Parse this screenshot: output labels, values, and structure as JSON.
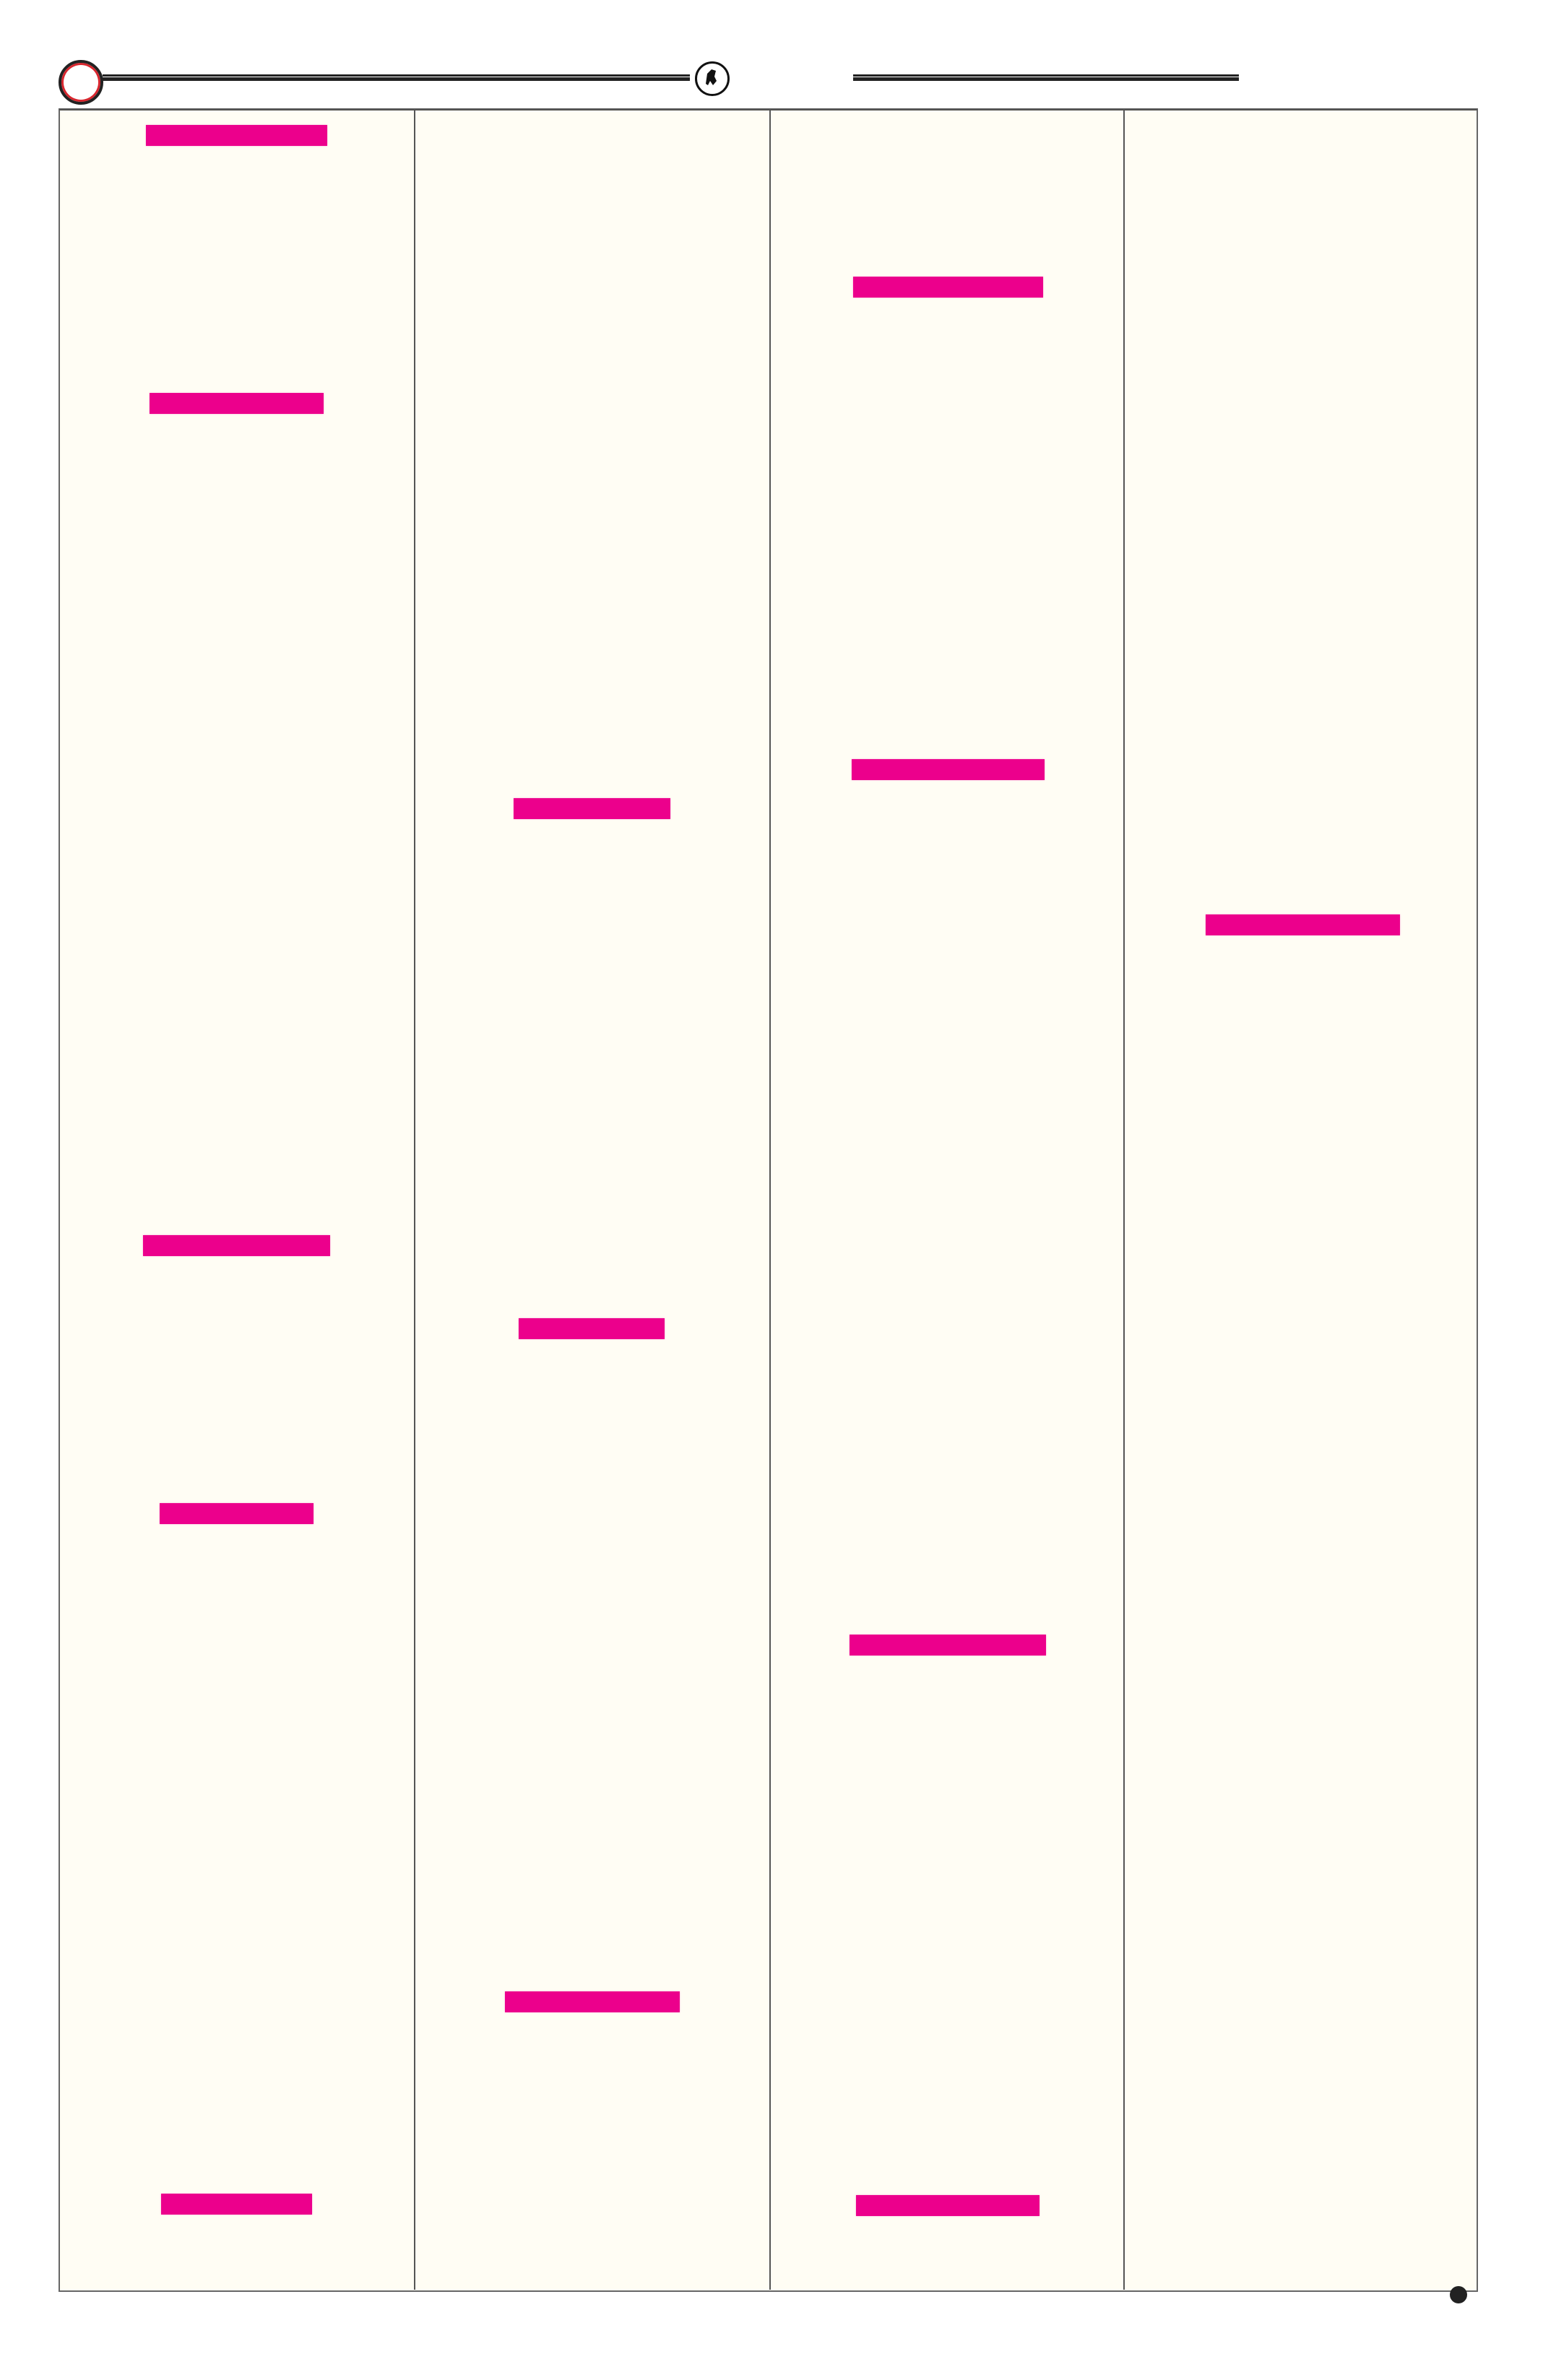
{
  "colors": {
    "redaction": "#ec008c",
    "page_background": "#fffdf4",
    "rule": "#222222",
    "ring_accent": "#d8262e"
  },
  "header": {
    "left_ornament_icon": "red-ring-icon",
    "center_ornament_icon": "emblem-seal-icon"
  },
  "footer": {
    "ornament_icon": "dot-icon"
  },
  "columns": [
    {
      "redacted_blocks": 5
    },
    {
      "redacted_blocks": 3
    },
    {
      "redacted_blocks": 4
    },
    {
      "redacted_blocks": 1
    }
  ]
}
